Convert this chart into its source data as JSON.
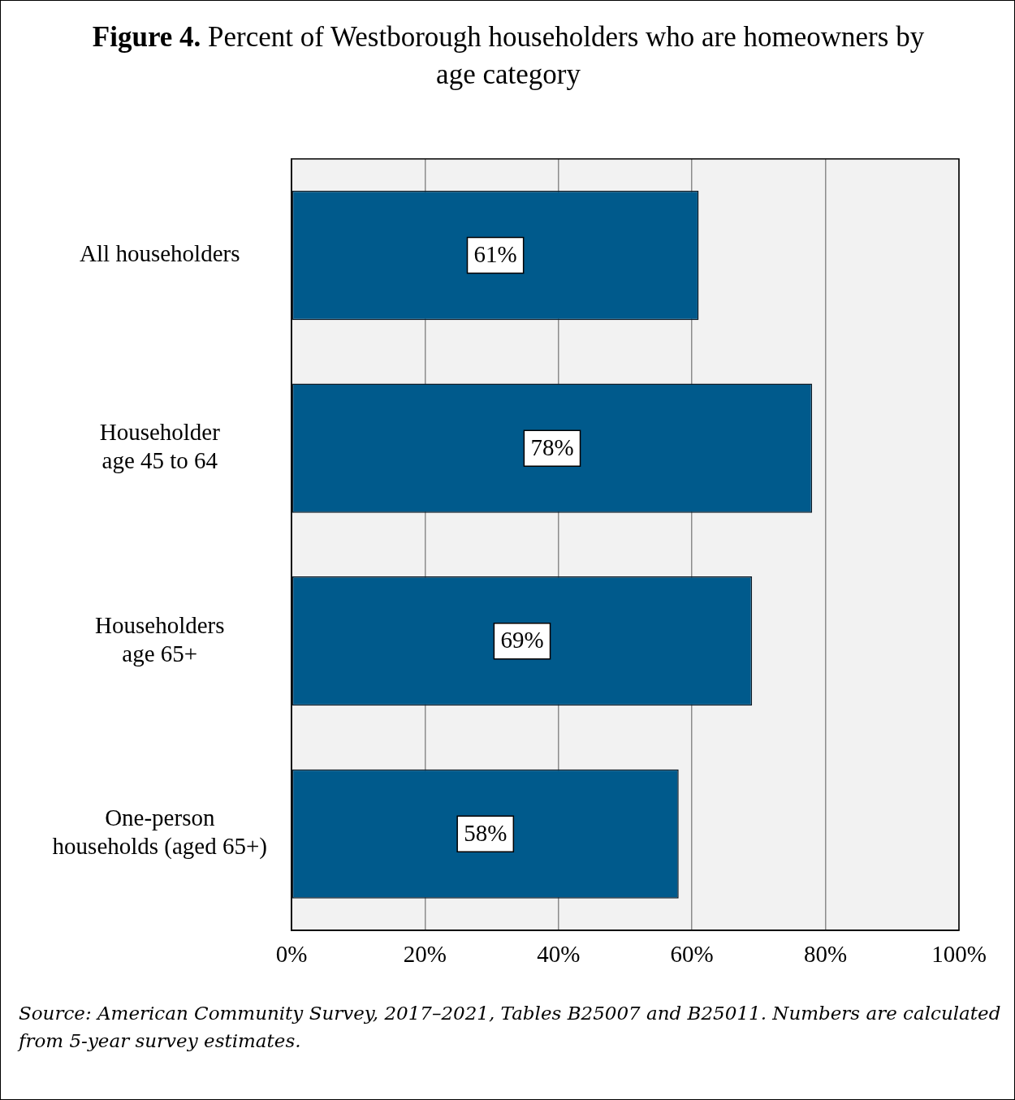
{
  "chart_data": {
    "type": "bar",
    "orientation": "horizontal",
    "title": "Figure 4. Percent of Westborough householders who are homeowners by age category",
    "categories": [
      "All householders",
      "Householder age 45 to 64",
      "Householders age 65+",
      "One-person households (aged 65+)"
    ],
    "values": [
      61,
      78,
      69,
      58
    ],
    "value_labels": [
      "61%",
      "78%",
      "69%",
      "58%"
    ],
    "color": "#005a8c",
    "xlim": [
      0,
      100
    ],
    "xticks": [
      {
        "value": 0,
        "label": "0%"
      },
      {
        "value": 20,
        "label": "20%"
      },
      {
        "value": 40,
        "label": "40%"
      },
      {
        "value": 60,
        "label": "60%"
      },
      {
        "value": 80,
        "label": "80%"
      },
      {
        "value": 100,
        "label": "100%"
      }
    ],
    "grid": "x",
    "legend": false,
    "annotations": [
      "Source: American Community Survey, 2017–2021, Tables B25007 and B25011. Numbers are calculated from 5-year survey estimates."
    ]
  }
}
